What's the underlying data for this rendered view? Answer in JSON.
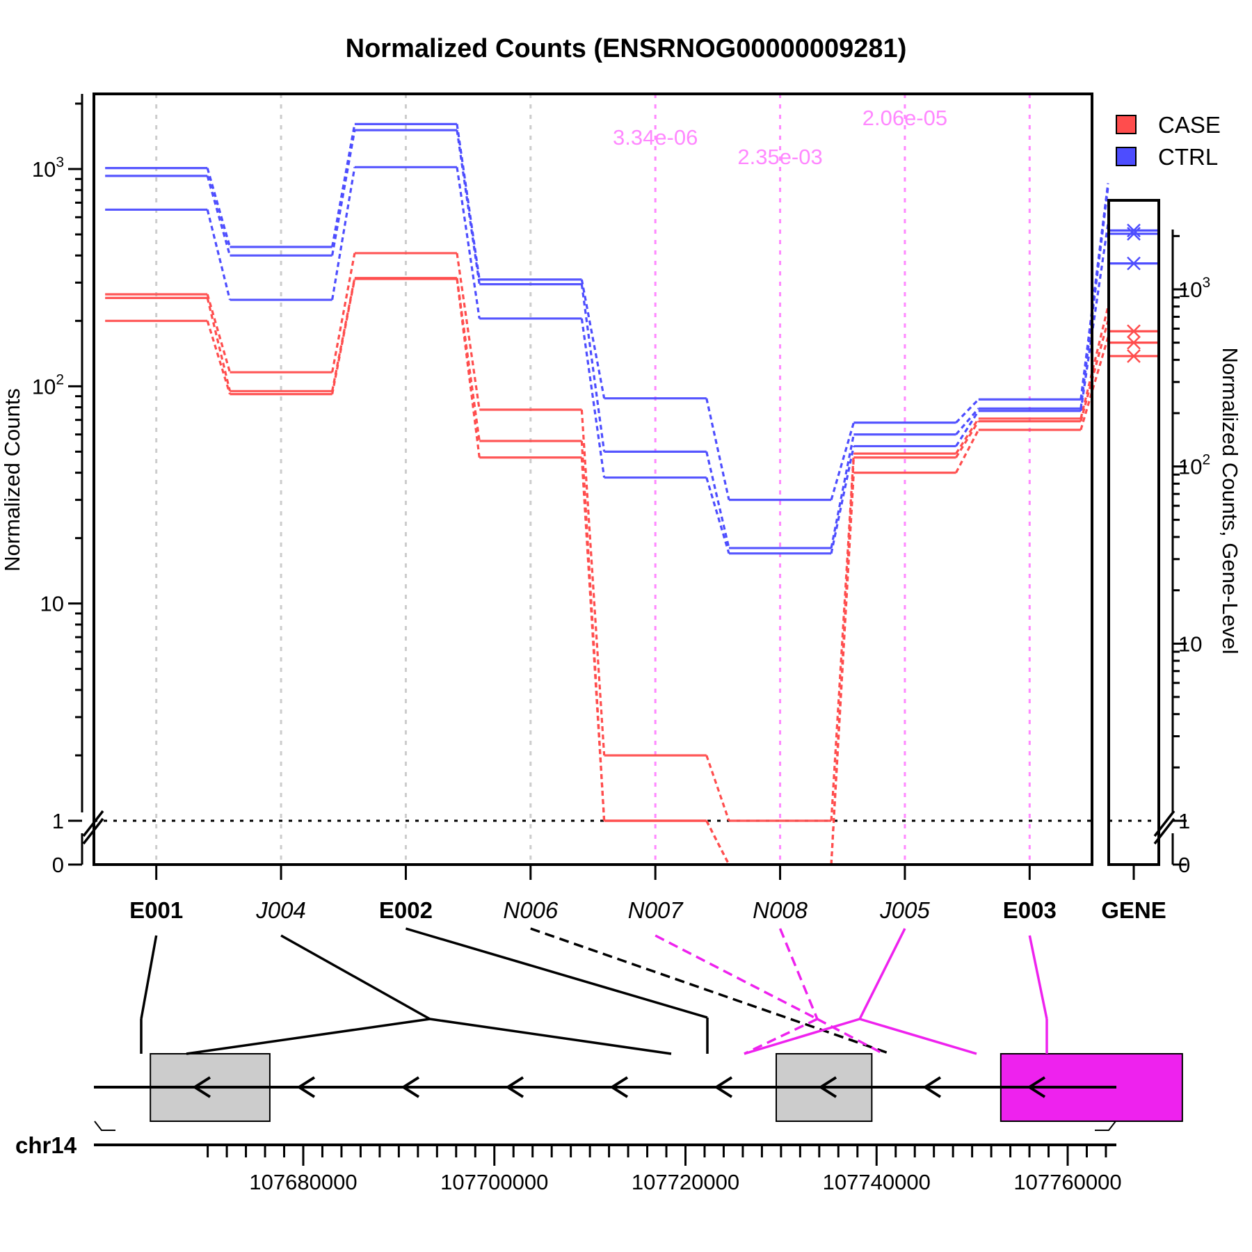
{
  "chart_data": {
    "type": "line",
    "title": "Normalized Counts (ENSRNOG00000009281)",
    "ylabel": "Normalized Counts",
    "ylabel_right": "Normalized Counts, Gene-Level",
    "y_scale": "log (0 and 1 with axis break)",
    "y_ticks": [
      "0",
      "1",
      "10",
      "10^2",
      "10^3"
    ],
    "y_ticks_right": [
      "0",
      "1",
      "10",
      "10^2",
      "10^3"
    ],
    "gene_label": "GENE",
    "legend": {
      "placement": "top-right",
      "items": [
        {
          "name": "CASE",
          "color": "#ff4d4d"
        },
        {
          "name": "CTRL",
          "color": "#4d4dff"
        }
      ]
    },
    "features": [
      {
        "id": "E001",
        "kind": "exon",
        "significant": false
      },
      {
        "id": "J004",
        "kind": "junction",
        "significant": false
      },
      {
        "id": "E002",
        "kind": "exon",
        "significant": false
      },
      {
        "id": "N006",
        "kind": "novel-junction",
        "significant": false
      },
      {
        "id": "N007",
        "kind": "novel-junction",
        "significant": true,
        "pvalue": "3.34e-06"
      },
      {
        "id": "N008",
        "kind": "novel-junction",
        "significant": true,
        "pvalue": "2.35e-03"
      },
      {
        "id": "J005",
        "kind": "junction",
        "significant": true,
        "pvalue": "2.06e-05"
      },
      {
        "id": "E003",
        "kind": "exon",
        "significant": true
      }
    ],
    "series": [
      {
        "name": "CASE",
        "color": "#ff4d4d",
        "replicates": [
          [
            265,
            116,
            410,
            78,
            2,
            1,
            49,
            71
          ],
          [
            255,
            95,
            315,
            56,
            1,
            0,
            47,
            69
          ],
          [
            200,
            92,
            312,
            47,
            1,
            0,
            40,
            63
          ]
        ]
      },
      {
        "name": "CTRL",
        "color": "#4d4dff",
        "replicates": [
          [
            1010,
            438,
            1610,
            310,
            88,
            30,
            68,
            87
          ],
          [
            930,
            400,
            1510,
            295,
            50,
            18,
            60,
            79
          ],
          [
            650,
            250,
            1020,
            205,
            38,
            17,
            53,
            77
          ]
        ]
      }
    ],
    "gene_level": {
      "CASE": [
        580,
        500,
        420
      ],
      "CTRL": [
        2150,
        2060,
        1400
      ]
    },
    "genome_track": {
      "chromosome": "chr14",
      "strand": "-",
      "x_ticks": [
        "107680000",
        "107700000",
        "107720000",
        "107740000",
        "107760000"
      ],
      "tick_values": [
        107680000,
        107700000,
        107720000,
        107740000,
        107760000
      ],
      "exons": [
        {
          "id": "E001",
          "start": 107664000,
          "end": 107676500,
          "significant": false
        },
        {
          "id": "E002",
          "start": 107729500,
          "end": 107739500,
          "significant": false
        },
        {
          "id": "E003",
          "start": 107753000,
          "end": 107772000,
          "significant": true
        }
      ]
    }
  }
}
